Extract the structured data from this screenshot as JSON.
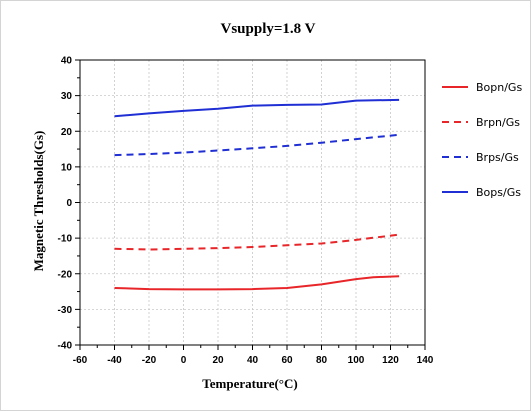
{
  "chart_data": {
    "type": "line",
    "title": "Vsupply=1.8 V",
    "xlabel": "Temperature(°C)",
    "ylabel": "Magnetic Thresholds(Gs)",
    "xlim": [
      -60,
      140
    ],
    "ylim": [
      -40,
      40
    ],
    "xticks": [
      -60,
      -40,
      -20,
      0,
      20,
      40,
      60,
      80,
      100,
      120,
      140
    ],
    "yticks": [
      -40,
      -30,
      -20,
      -10,
      0,
      10,
      20,
      30,
      40
    ],
    "grid": true,
    "legend_position": "right",
    "series": [
      {
        "name": "Bopn/Gs",
        "color": "#e8262a",
        "dash": "solid",
        "x": [
          -40,
          -20,
          0,
          20,
          40,
          60,
          80,
          100,
          110,
          125
        ],
        "y": [
          -24,
          -24.3,
          -24.4,
          -24.4,
          -24.3,
          -24,
          -23,
          -21.5,
          -21,
          -20.7
        ]
      },
      {
        "name": "Brpn/Gs",
        "color": "#e8262a",
        "dash": "dashed",
        "x": [
          -40,
          -20,
          0,
          20,
          40,
          60,
          80,
          100,
          125
        ],
        "y": [
          -13,
          -13.2,
          -13,
          -12.8,
          -12.5,
          -12,
          -11.5,
          -10.5,
          -9
        ]
      },
      {
        "name": "Brps/Gs",
        "color": "#1f2fd4",
        "dash": "dashed",
        "x": [
          -40,
          -20,
          0,
          20,
          40,
          60,
          80,
          100,
          125
        ],
        "y": [
          13.3,
          13.6,
          14,
          14.6,
          15.2,
          15.9,
          16.8,
          17.8,
          19
        ]
      },
      {
        "name": "Bops/Gs",
        "color": "#1f2fd4",
        "dash": "solid",
        "x": [
          -40,
          -20,
          0,
          20,
          40,
          60,
          80,
          100,
          125
        ],
        "y": [
          24.2,
          25,
          25.7,
          26.3,
          27.2,
          27.4,
          27.5,
          28.6,
          28.8
        ]
      }
    ]
  }
}
